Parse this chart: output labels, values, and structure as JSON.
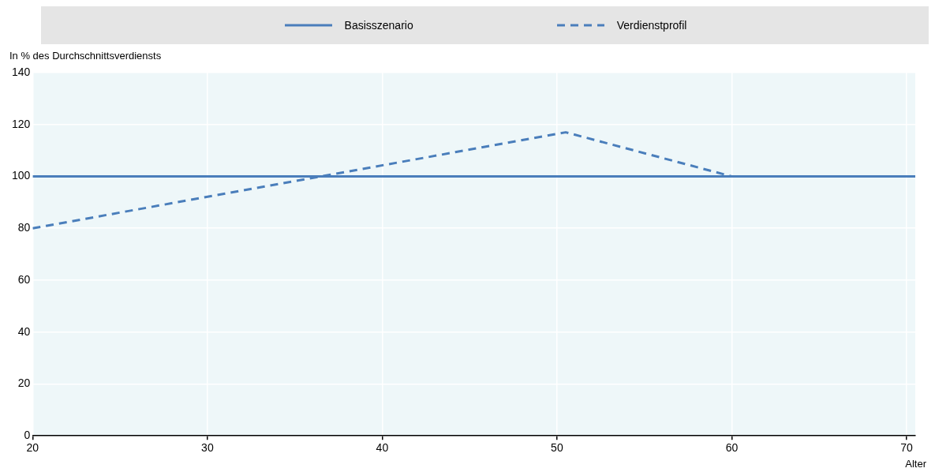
{
  "chart_data": {
    "type": "line",
    "xlabel": "Alter",
    "ylabel": "In % des Durchschnittsverdiensts",
    "series": [
      {
        "name": "Basisszenario",
        "color": "#4a7ebb",
        "line_style": "solid",
        "x": [
          20,
          70.5
        ],
        "values": [
          100,
          100
        ]
      },
      {
        "name": "Verdienstprofil",
        "color": "#4a7ebb",
        "line_style": "dashed",
        "x": [
          20,
          50.5,
          60,
          70.5
        ],
        "values": [
          80,
          117,
          100,
          100
        ]
      }
    ],
    "xlim": [
      20,
      70.5
    ],
    "xticks": [
      20,
      30,
      40,
      50,
      60,
      70
    ],
    "ylim": [
      0,
      140
    ],
    "yticks": [
      0,
      20,
      40,
      60,
      80,
      100,
      120,
      140
    ],
    "grid": true,
    "legend": "top",
    "marker": "none"
  }
}
